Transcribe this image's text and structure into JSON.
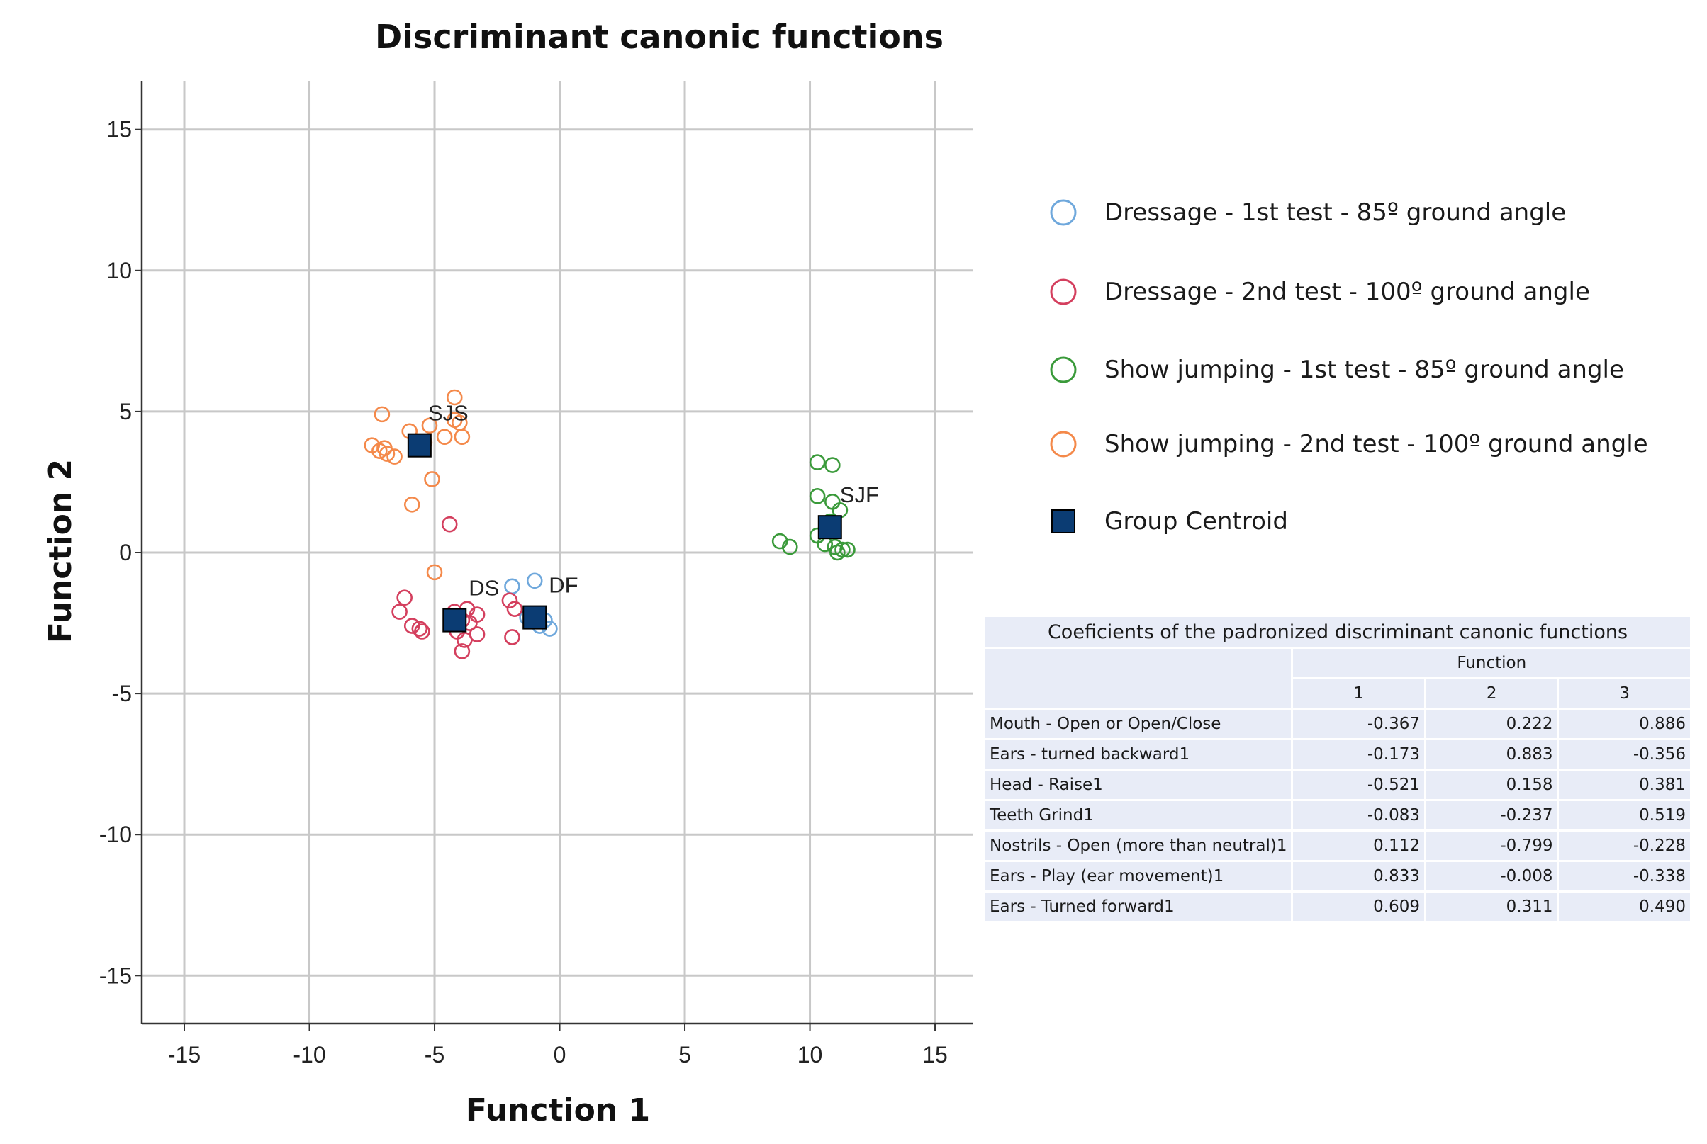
{
  "chart_data": {
    "type": "scatter",
    "title": "Discriminant canonic functions",
    "xlabel": "Function 1",
    "ylabel": "Function 2",
    "xlim": [
      -16.7,
      16.5
    ],
    "ylim": [
      -16.7,
      16.7
    ],
    "xticks": [
      -15,
      -10,
      -5,
      0,
      5,
      10,
      15
    ],
    "yticks": [
      15,
      10,
      5,
      0,
      -5,
      -10,
      -15
    ],
    "grid": true,
    "legend_position": "right",
    "series": [
      {
        "name": "Dressage - 1st test - 85º ground angle",
        "color": "#6fa8dc",
        "marker": "circle-open",
        "points": [
          [
            -1.9,
            -1.2
          ],
          [
            -1.0,
            -1.0
          ],
          [
            -0.8,
            -2.6
          ],
          [
            -0.4,
            -2.7
          ],
          [
            -1.3,
            -2.3
          ],
          [
            -0.6,
            -2.4
          ]
        ]
      },
      {
        "name": "Dressage - 2nd test - 100º ground angle",
        "color": "#d43f5e",
        "marker": "circle-open",
        "points": [
          [
            -6.2,
            -1.6
          ],
          [
            -6.4,
            -2.1
          ],
          [
            -5.9,
            -2.6
          ],
          [
            -5.6,
            -2.7
          ],
          [
            -5.5,
            -2.8
          ],
          [
            -4.4,
            1.0
          ],
          [
            -4.1,
            -2.8
          ],
          [
            -3.9,
            -3.5
          ],
          [
            -3.8,
            -3.1
          ],
          [
            -3.7,
            -2.0
          ],
          [
            -3.6,
            -2.5
          ],
          [
            -3.3,
            -2.2
          ],
          [
            -3.3,
            -2.9
          ],
          [
            -2.0,
            -1.7
          ],
          [
            -1.8,
            -2.0
          ],
          [
            -1.9,
            -3.0
          ],
          [
            -3.9,
            -2.4
          ],
          [
            -4.2,
            -2.1
          ]
        ]
      },
      {
        "name": "Show jumping - 1st test - 85º ground angle",
        "color": "#3a9a3a",
        "marker": "circle-open",
        "points": [
          [
            8.8,
            0.4
          ],
          [
            9.2,
            0.2
          ],
          [
            10.3,
            3.2
          ],
          [
            10.9,
            3.1
          ],
          [
            10.3,
            2.0
          ],
          [
            10.9,
            1.8
          ],
          [
            11.2,
            1.5
          ],
          [
            10.3,
            0.6
          ],
          [
            10.6,
            0.3
          ],
          [
            11.0,
            0.2
          ],
          [
            11.3,
            0.1
          ],
          [
            11.5,
            0.1
          ],
          [
            11.1,
            0.0
          ],
          [
            10.8,
            1.1
          ]
        ]
      },
      {
        "name": "Show jumping - 2nd test - 100º ground angle",
        "color": "#f4894a",
        "marker": "circle-open",
        "points": [
          [
            -7.5,
            3.8
          ],
          [
            -7.2,
            3.6
          ],
          [
            -7.0,
            3.7
          ],
          [
            -6.9,
            3.5
          ],
          [
            -6.6,
            3.4
          ],
          [
            -7.1,
            4.9
          ],
          [
            -6.0,
            4.3
          ],
          [
            -5.9,
            1.7
          ],
          [
            -5.2,
            4.5
          ],
          [
            -5.1,
            2.6
          ],
          [
            -4.6,
            4.1
          ],
          [
            -4.2,
            5.5
          ],
          [
            -4.2,
            4.7
          ],
          [
            -4.0,
            4.6
          ],
          [
            -3.9,
            4.1
          ],
          [
            -5.0,
            -0.7
          ],
          [
            -5.4,
            3.9
          ]
        ]
      }
    ],
    "centroids": {
      "legend_label": "Group Centroid",
      "color": "#0b3c73",
      "items": [
        {
          "label": "SJS",
          "x": -5.6,
          "y": 3.8
        },
        {
          "label": "DS",
          "x": -4.2,
          "y": -2.4
        },
        {
          "label": "DF",
          "x": -1.0,
          "y": -2.3
        },
        {
          "label": "SJF",
          "x": 10.8,
          "y": 0.9
        }
      ]
    }
  },
  "table": {
    "caption": "Coeficients of the padronized discriminant canonic functions",
    "group_header": "Function",
    "columns": [
      "1",
      "2",
      "3"
    ],
    "rows": [
      {
        "label": "Mouth - Open or Open/Close",
        "values": [
          "-0.367",
          "0.222",
          "0.886"
        ]
      },
      {
        "label": "Ears - turned backward1",
        "values": [
          "-0.173",
          "0.883",
          "-0.356"
        ]
      },
      {
        "label": "Head - Raise1",
        "values": [
          "-0.521",
          "0.158",
          "0.381"
        ]
      },
      {
        "label": "Teeth Grind1",
        "values": [
          "-0.083",
          "-0.237",
          "0.519"
        ]
      },
      {
        "label": "Nostrils - Open (more than neutral)1",
        "values": [
          "0.112",
          "-0.799",
          "-0.228"
        ]
      },
      {
        "label": "Ears - Play (ear movement)1",
        "values": [
          "0.833",
          "-0.008",
          "-0.338"
        ]
      },
      {
        "label": "Ears - Turned forward1",
        "values": [
          "0.609",
          "0.311",
          "0.490"
        ]
      }
    ]
  }
}
